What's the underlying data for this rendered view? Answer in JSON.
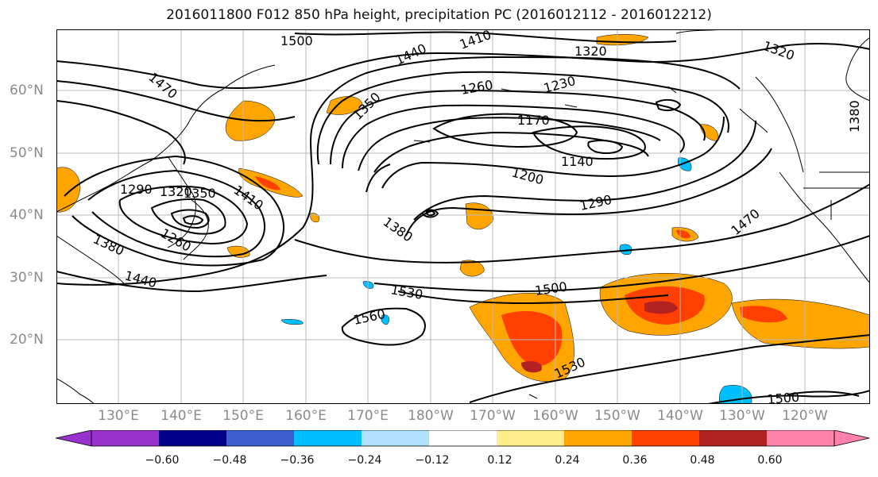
{
  "title": "2016011800 F012 850 hPa height, precipitation PC (2016012112 - 2016012212)",
  "lat_labels": [
    "60°N",
    "50°N",
    "40°N",
    "30°N",
    "20°N"
  ],
  "lon_labels": [
    "130°E",
    "140°E",
    "150°E",
    "160°E",
    "170°E",
    "180°W",
    "170°W",
    "160°W",
    "150°W",
    "140°W",
    "130°W",
    "120°W"
  ],
  "contour_labels": [
    "1500",
    "1410",
    "1440",
    "1320",
    "1320",
    "1470",
    "1350",
    "1260",
    "1230",
    "1170",
    "1380",
    "1290",
    "1320",
    "1350",
    "1410",
    "1140",
    "1200",
    "1290",
    "1380",
    "1470",
    "1260",
    "1380",
    "1440",
    "1530",
    "1500",
    "1560",
    "1530",
    "1500"
  ],
  "colorbar": {
    "ticks": [
      "−0.60",
      "−0.48",
      "−0.36",
      "−0.24",
      "−0.12",
      "0.12",
      "0.24",
      "0.36",
      "0.48",
      "0.60"
    ],
    "colors": [
      "#9932cc",
      "#00008b",
      "#3a5fcd",
      "#00bfff",
      "#b0e2ff",
      "#ffffff",
      "#ffec8b",
      "#ffa500",
      "#ff4000",
      "#b22222",
      "#ff82ab"
    ]
  }
}
